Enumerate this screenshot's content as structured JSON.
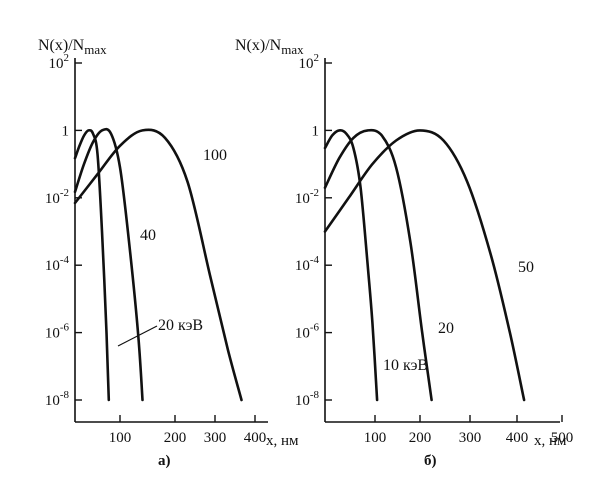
{
  "chart_data": [
    {
      "type": "line",
      "panel_label": "а)",
      "ylabel": "N(x)/N",
      "ylabel_sub": "max",
      "xlabel": "x, нм",
      "yscale": "log",
      "ylim": [
        1e-08,
        100
      ],
      "xlim": [
        0,
        450
      ],
      "y_ticks": [
        {
          "base": "10",
          "exp": "2"
        },
        {
          "base": "1",
          "exp": ""
        },
        {
          "base": "10",
          "exp": "-2"
        },
        {
          "base": "10",
          "exp": "-4"
        },
        {
          "base": "10",
          "exp": "-6"
        },
        {
          "base": "10",
          "exp": "-8"
        }
      ],
      "x_ticks": [
        "100",
        "200",
        "300",
        "400"
      ],
      "series": [
        {
          "name": "20 кэВ",
          "x": [
            0,
            10,
            20,
            30,
            40,
            50,
            60,
            70,
            75
          ],
          "y": [
            0.15,
            0.35,
            0.7,
            1.0,
            0.8,
            0.2,
            0.001,
            1e-06,
            1e-08
          ]
        },
        {
          "name": "40",
          "x": [
            0,
            20,
            40,
            60,
            80,
            100,
            120,
            140,
            150
          ],
          "y": [
            0.015,
            0.1,
            0.45,
            1.0,
            0.8,
            0.08,
            0.0005,
            1e-06,
            1e-08
          ]
        },
        {
          "name": "100",
          "x": [
            0,
            50,
            100,
            150,
            200,
            250,
            300,
            340,
            370
          ],
          "y": [
            0.007,
            0.05,
            0.35,
            1.0,
            0.6,
            0.03,
            5e-05,
            3e-07,
            1e-08
          ]
        }
      ]
    },
    {
      "type": "line",
      "panel_label": "б)",
      "ylabel": "N(x)/N",
      "ylabel_sub": "max",
      "xlabel": "x, нм",
      "yscale": "log",
      "ylim": [
        1e-08,
        100
      ],
      "xlim": [
        0,
        520
      ],
      "y_ticks": [
        {
          "base": "10",
          "exp": "2"
        },
        {
          "base": "1",
          "exp": ""
        },
        {
          "base": "10",
          "exp": "-2"
        },
        {
          "base": "10",
          "exp": "-4"
        },
        {
          "base": "10",
          "exp": "-6"
        },
        {
          "base": "10",
          "exp": "-8"
        }
      ],
      "x_ticks": [
        "100",
        "200",
        "300",
        "400",
        "500"
      ],
      "series": [
        {
          "name": "10 кэВ",
          "x": [
            0,
            15,
            30,
            45,
            60,
            75,
            90,
            100,
            110
          ],
          "y": [
            0.3,
            0.7,
            1.0,
            0.8,
            0.3,
            0.02,
            0.0001,
            2e-06,
            1e-08
          ]
        },
        {
          "name": "20",
          "x": [
            0,
            30,
            60,
            90,
            120,
            150,
            180,
            205,
            225
          ],
          "y": [
            0.02,
            0.15,
            0.6,
            1.0,
            0.7,
            0.08,
            0.0005,
            1e-06,
            1e-08
          ]
        },
        {
          "name": "50",
          "x": [
            0,
            50,
            100,
            150,
            200,
            250,
            300,
            350,
            390,
            420
          ],
          "y": [
            0.001,
            0.01,
            0.1,
            0.5,
            1.0,
            0.5,
            0.03,
            0.0002,
            1e-06,
            1e-08
          ]
        }
      ]
    }
  ]
}
